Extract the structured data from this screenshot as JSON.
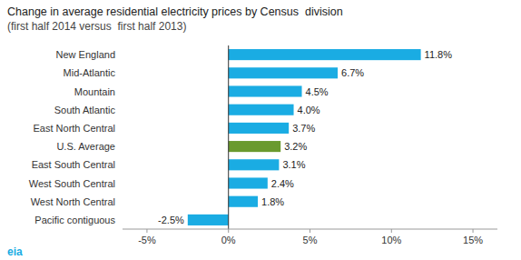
{
  "chart_data": {
    "type": "bar",
    "orientation": "horizontal",
    "title": "Change in average residential electricity prices by Census  division",
    "subtitle": "(first half 2014 versus  first half 2013)",
    "categories": [
      "New England",
      "Mid-Atlantic",
      "Mountain",
      "South Atlantic",
      "East North Central",
      "U.S. Average",
      "East South Central",
      "West South Central",
      "West North Central",
      "Pacific contiguous"
    ],
    "values": [
      11.8,
      6.7,
      4.5,
      4.0,
      3.7,
      3.2,
      3.1,
      2.4,
      1.8,
      -2.5
    ],
    "value_labels": [
      "11.8%",
      "6.7%",
      "4.5%",
      "4.0%",
      "3.7%",
      "3.2%",
      "3.1%",
      "2.4%",
      "1.8%",
      "-2.5%"
    ],
    "data_labels": true,
    "colors": [
      "#1aace3",
      "#1aace3",
      "#1aace3",
      "#1aace3",
      "#1aace3",
      "#6a9a2e",
      "#1aace3",
      "#1aace3",
      "#1aace3",
      "#1aace3"
    ],
    "xlim": [
      -6.5,
      16.5
    ],
    "xticks": [
      {
        "value": -5,
        "label": "-5%"
      },
      {
        "value": 0,
        "label": "0%"
      },
      {
        "value": 5,
        "label": "5%"
      },
      {
        "value": 10,
        "label": "10%"
      },
      {
        "value": 15,
        "label": "15%"
      }
    ],
    "grid": false,
    "annotations": [
      {
        "text": "eia",
        "color": "#1aace3"
      }
    ]
  }
}
